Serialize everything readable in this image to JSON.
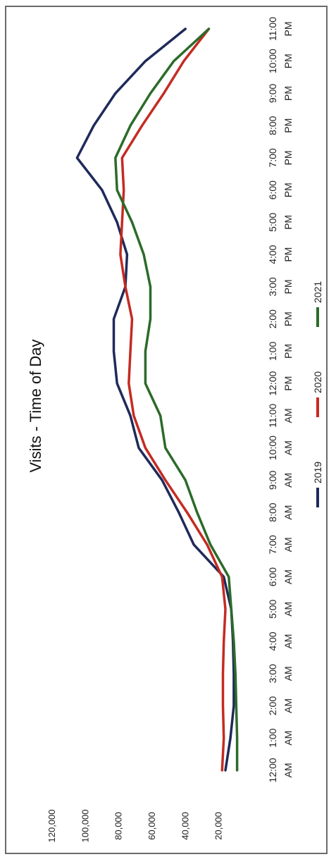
{
  "chart_data": {
    "type": "line",
    "title": "Visits - Time of Day",
    "xlabel": "",
    "ylabel": "",
    "ylim": [
      0,
      120000
    ],
    "yticks": [
      "20,000",
      "40,000",
      "60,000",
      "80,000",
      "100,000",
      "120,000"
    ],
    "ytick_values": [
      20000,
      40000,
      60000,
      80000,
      100000,
      120000
    ],
    "categories": [
      "12:00 AM",
      "1:00 AM",
      "2:00 AM",
      "3:00 AM",
      "4:00 AM",
      "5:00 AM",
      "6:00 AM",
      "7:00 AM",
      "8:00 AM",
      "9:00 AM",
      "10:00 AM",
      "11:00 AM",
      "12:00 PM",
      "1:00 PM",
      "2:00 PM",
      "3:00 PM",
      "4:00 PM",
      "5:00 PM",
      "6:00 PM",
      "7:00 PM",
      "8:00 PM",
      "9:00 PM",
      "10:00 PM",
      "11:00 PM"
    ],
    "series": [
      {
        "name": "2019",
        "color": "#1f2a5a",
        "values": [
          19000,
          16000,
          14000,
          14000,
          14500,
          15500,
          20000,
          38000,
          47000,
          57000,
          71000,
          76000,
          84000,
          86000,
          86000,
          79000,
          78000,
          84000,
          93000,
          108000,
          98000,
          85000,
          67000,
          43000
        ]
      },
      {
        "name": "2020",
        "color": "#c42b22",
        "values": [
          21000,
          20000,
          20500,
          20500,
          20000,
          19000,
          21000,
          30000,
          42000,
          55000,
          67000,
          74000,
          77000,
          76000,
          75000,
          79000,
          82000,
          81000,
          80000,
          81000,
          69000,
          56000,
          44000,
          29000
        ]
      },
      {
        "name": "2021",
        "color": "#2c6b2a",
        "values": [
          12000,
          12000,
          12500,
          13000,
          14000,
          15500,
          17000,
          28000,
          36000,
          43000,
          55000,
          58000,
          67000,
          67000,
          64000,
          64000,
          68000,
          75000,
          84000,
          85000,
          76000,
          64000,
          50000,
          29000
        ]
      }
    ],
    "legend_placement": "bottom",
    "grid": false
  }
}
